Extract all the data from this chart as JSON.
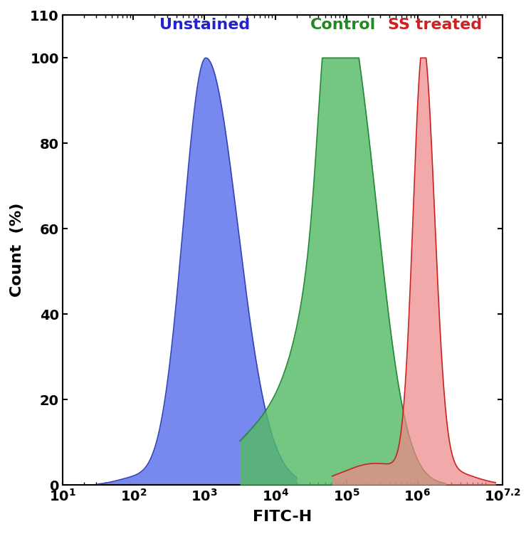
{
  "title": "",
  "xlabel": "FITC-H",
  "ylabel": "Count  (%)",
  "xlim_log": [
    1,
    7.2
  ],
  "ylim": [
    0,
    110
  ],
  "yticks": [
    0,
    20,
    40,
    60,
    80,
    100,
    110
  ],
  "ytick_labels": [
    "0",
    "20",
    "40",
    "60",
    "80",
    "100",
    "110"
  ],
  "background_color": "#ffffff",
  "label_positions": [
    {
      "label": "Unstained",
      "x_log": 3.0,
      "y": 106,
      "color": "#2222cc",
      "fontsize": 16,
      "fontweight": "bold"
    },
    {
      "label": "Control",
      "x_log": 4.95,
      "y": 106,
      "color": "#228822",
      "fontsize": 16,
      "fontweight": "bold"
    },
    {
      "label": "SS treated",
      "x_log": 6.25,
      "y": 106,
      "color": "#cc2222",
      "fontsize": 16,
      "fontweight": "bold"
    }
  ]
}
